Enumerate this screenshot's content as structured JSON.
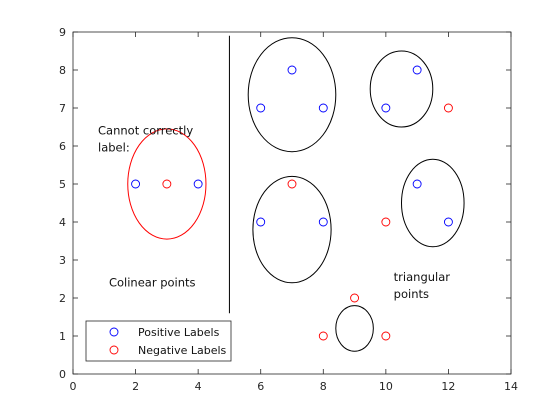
{
  "chart_data": {
    "type": "scatter",
    "title": "",
    "xlabel": "",
    "ylabel": "",
    "xlim": [
      0,
      14
    ],
    "ylim": [
      0,
      9
    ],
    "x_ticks": [
      0,
      2,
      4,
      6,
      8,
      10,
      12,
      14
    ],
    "y_ticks": [
      0,
      1,
      2,
      3,
      4,
      5,
      6,
      7,
      8,
      9
    ],
    "grid": false,
    "legend_position": "bottom-left",
    "series": [
      {
        "name": "Positive Labels",
        "color": "#0000ff",
        "marker": "circle-open",
        "points": [
          {
            "x": 2,
            "y": 5
          },
          {
            "x": 4,
            "y": 5
          },
          {
            "x": 6,
            "y": 7
          },
          {
            "x": 7,
            "y": 8
          },
          {
            "x": 8,
            "y": 7
          },
          {
            "x": 10,
            "y": 7
          },
          {
            "x": 11,
            "y": 8
          },
          {
            "x": 6,
            "y": 4
          },
          {
            "x": 8,
            "y": 4
          },
          {
            "x": 11,
            "y": 5
          },
          {
            "x": 12,
            "y": 4
          }
        ]
      },
      {
        "name": "Negative Labels",
        "color": "#ff0000",
        "marker": "circle-open",
        "points": [
          {
            "x": 3,
            "y": 5
          },
          {
            "x": 12,
            "y": 7
          },
          {
            "x": 7,
            "y": 5
          },
          {
            "x": 10,
            "y": 4
          },
          {
            "x": 9,
            "y": 2
          },
          {
            "x": 8,
            "y": 1
          },
          {
            "x": 10,
            "y": 1
          }
        ]
      }
    ],
    "circles": [
      {
        "cx": 3,
        "cy": 5,
        "rx": 1.25,
        "ry": 1.45,
        "color": "#ff0000"
      },
      {
        "cx": 7,
        "cy": 7.35,
        "rx": 1.4,
        "ry": 1.5,
        "color": "#000000"
      },
      {
        "cx": 10.5,
        "cy": 7.5,
        "rx": 1.0,
        "ry": 1.0,
        "color": "#000000"
      },
      {
        "cx": 7,
        "cy": 3.8,
        "rx": 1.25,
        "ry": 1.4,
        "color": "#000000"
      },
      {
        "cx": 11.5,
        "cy": 4.5,
        "rx": 1.0,
        "ry": 1.15,
        "color": "#000000"
      },
      {
        "cx": 9,
        "cy": 1.2,
        "rx": 0.6,
        "ry": 0.6,
        "color": "#000000"
      }
    ],
    "lines": [
      {
        "x1": 5,
        "y1": 1.6,
        "x2": 5,
        "y2": 8.9,
        "color": "#000000"
      }
    ],
    "annotations": [
      {
        "lines": [
          "Cannot correctly",
          "label:"
        ],
        "x": 0.8,
        "y": 6.3
      },
      {
        "lines": [
          "Colinear points"
        ],
        "x": 1.15,
        "y": 2.3
      },
      {
        "lines": [
          "triangular",
          "points"
        ],
        "x": 10.25,
        "y": 2.45
      }
    ]
  }
}
